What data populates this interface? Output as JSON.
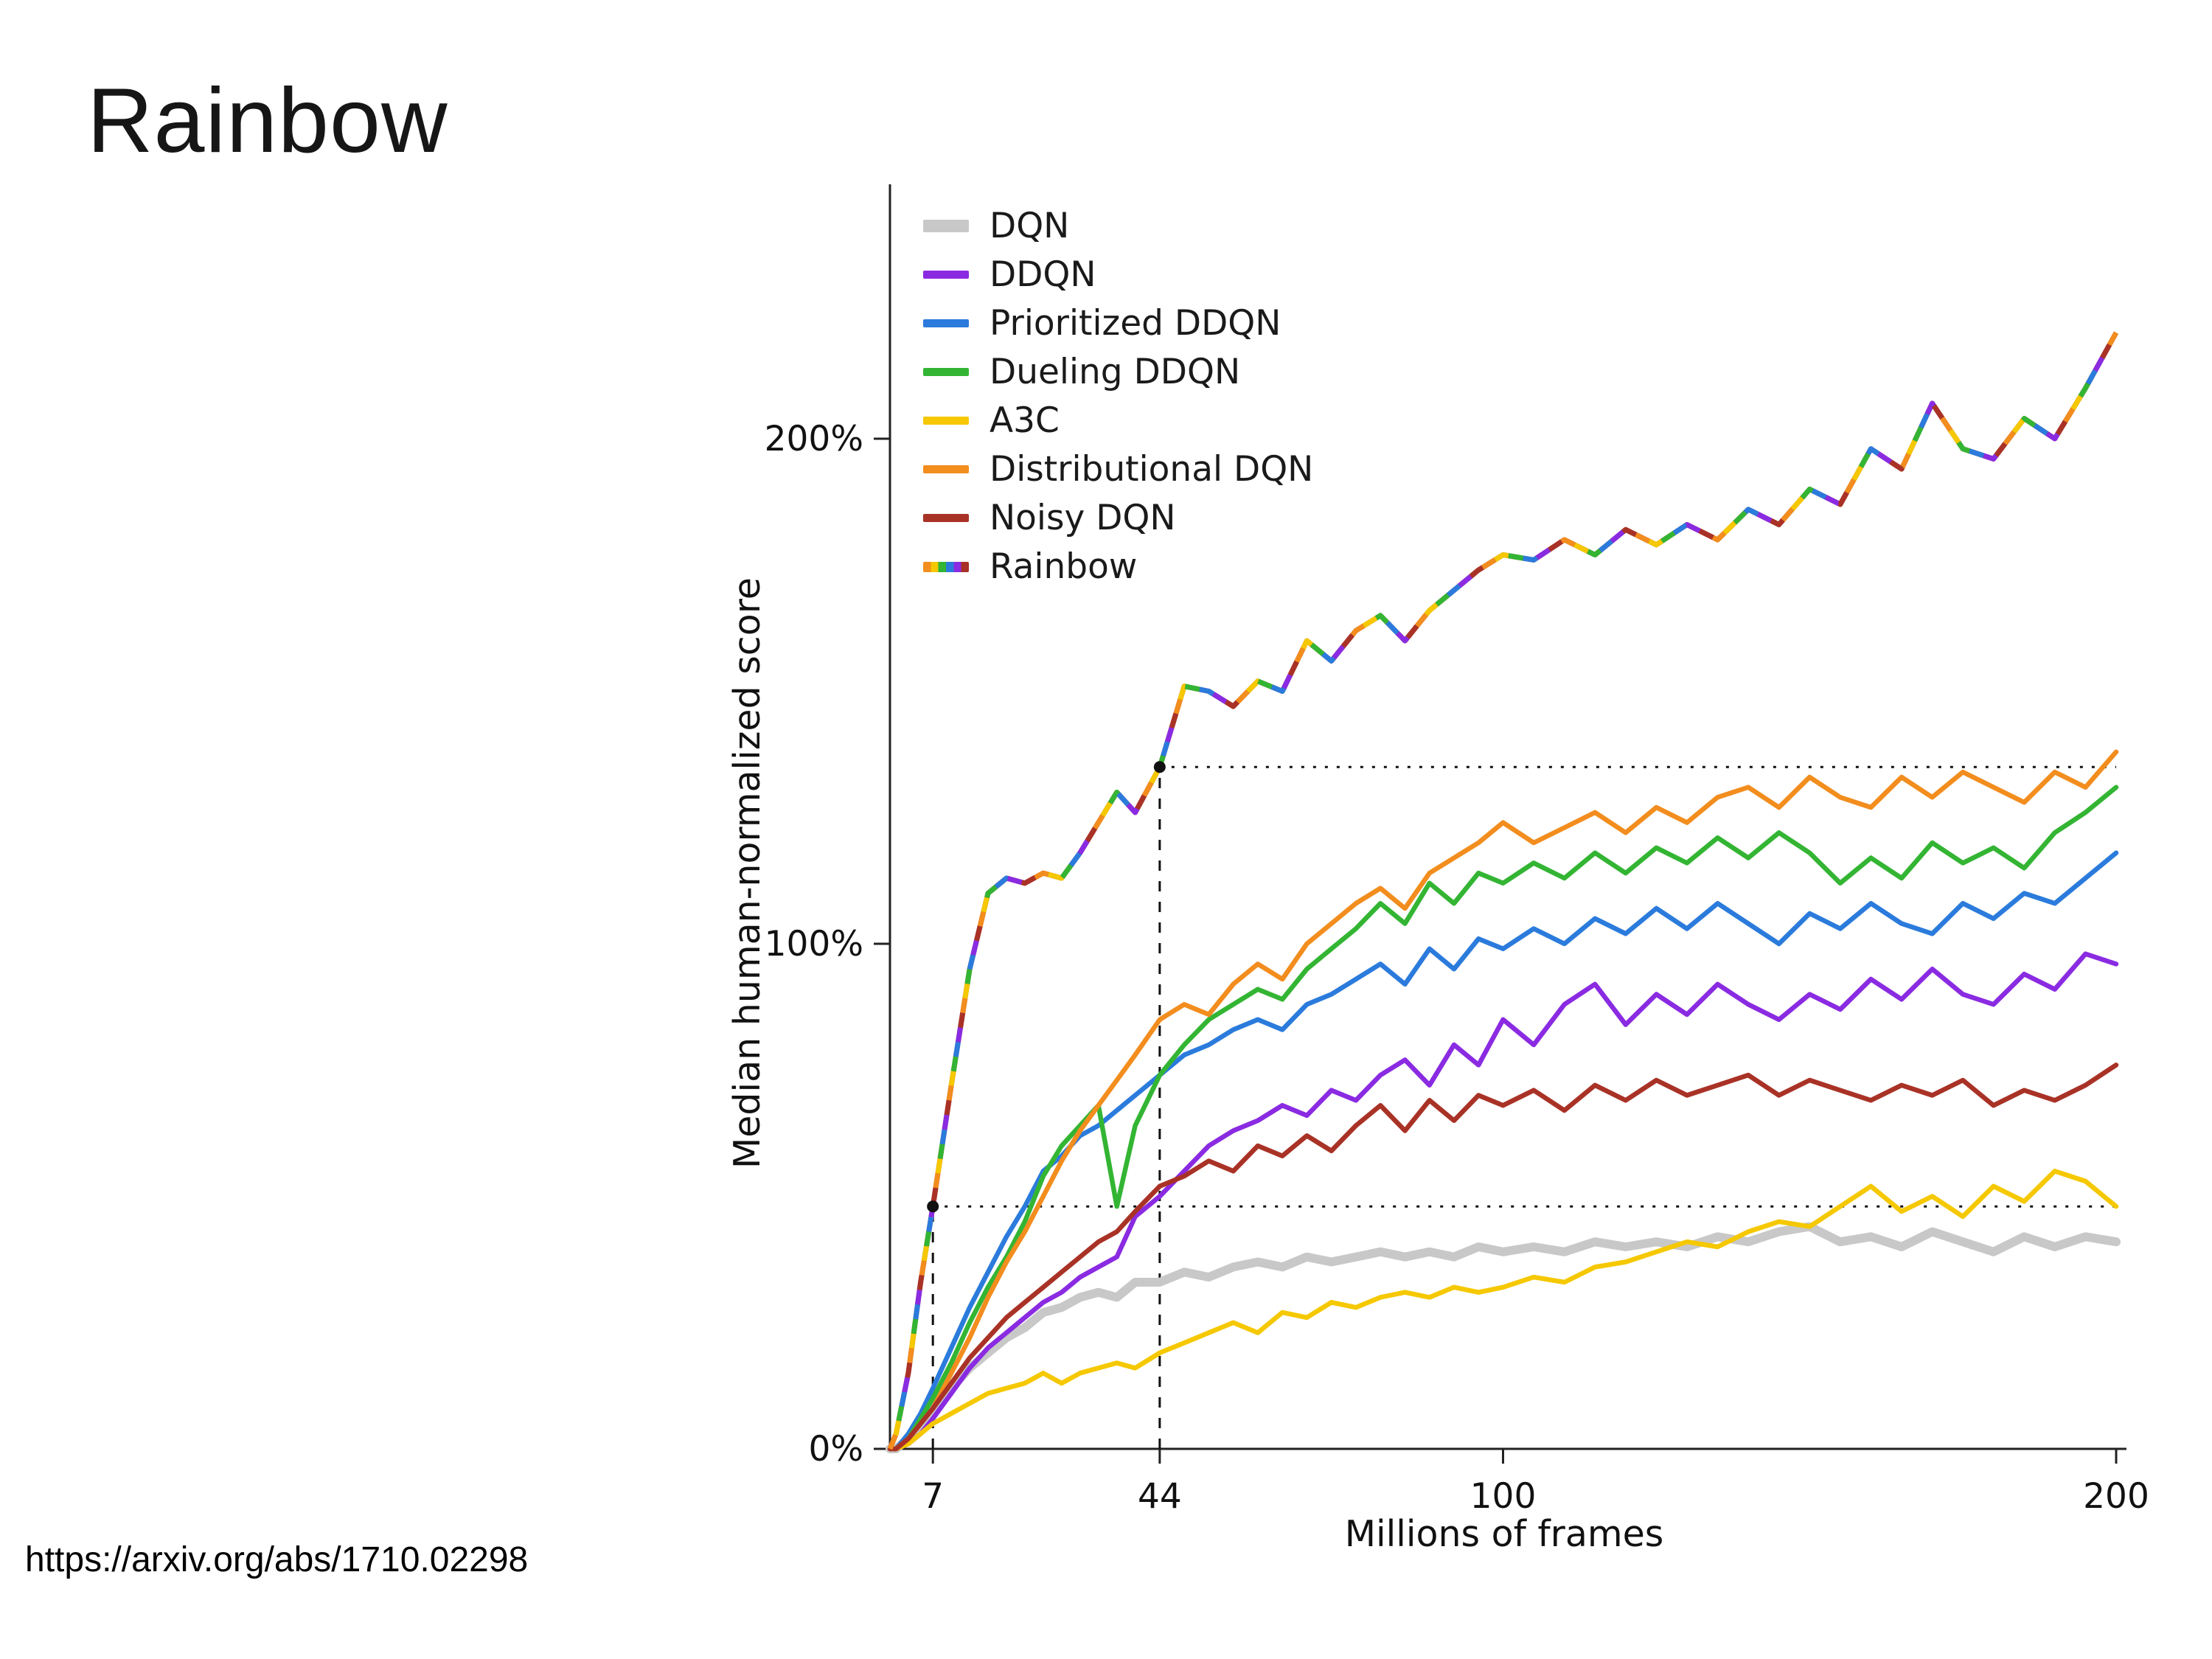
{
  "title": "Rainbow",
  "source_url": "https://arxiv.org/abs/1710.02298",
  "chart_data": {
    "type": "line",
    "title": "",
    "xlabel": "Millions of frames",
    "ylabel": "Median human-normalized score",
    "xlim": [
      0,
      200
    ],
    "ylim": [
      0,
      250
    ],
    "grid": false,
    "legend_position": "upper left",
    "xticks": [
      {
        "value": 7,
        "label": "7"
      },
      {
        "value": 44,
        "label": "44"
      },
      {
        "value": 100,
        "label": "100"
      },
      {
        "value": 200,
        "label": "200"
      }
    ],
    "yticks": [
      {
        "value": 0,
        "label": "0%"
      },
      {
        "value": 100,
        "label": "100%"
      },
      {
        "value": 200,
        "label": "200%"
      }
    ],
    "x": [
      0,
      1,
      3,
      5,
      7,
      10,
      13,
      16,
      19,
      22,
      25,
      28,
      31,
      34,
      37,
      40,
      44,
      48,
      52,
      56,
      60,
      64,
      68,
      72,
      76,
      80,
      84,
      88,
      92,
      96,
      100,
      105,
      110,
      115,
      120,
      125,
      130,
      135,
      140,
      145,
      150,
      155,
      160,
      165,
      170,
      175,
      180,
      185,
      190,
      195,
      200
    ],
    "series": [
      {
        "name": "DQN",
        "color": "#c8c8c8",
        "values": [
          0,
          0,
          2,
          5,
          8,
          12,
          16,
          19,
          22,
          24,
          27,
          28,
          30,
          31,
          30,
          33,
          33,
          35,
          34,
          36,
          37,
          36,
          38,
          37,
          38,
          39,
          38,
          39,
          38,
          40,
          39,
          40,
          39,
          41,
          40,
          41,
          40,
          42,
          41,
          43,
          44,
          41,
          42,
          40,
          43,
          41,
          39,
          42,
          40,
          42,
          41
        ]
      },
      {
        "name": "DDQN",
        "color": "#8a2be2",
        "values": [
          0,
          0,
          1,
          3,
          6,
          11,
          16,
          20,
          23,
          26,
          29,
          31,
          34,
          36,
          38,
          46,
          50,
          55,
          60,
          63,
          65,
          68,
          66,
          71,
          69,
          74,
          77,
          72,
          80,
          76,
          85,
          80,
          88,
          92,
          84,
          90,
          86,
          92,
          88,
          85,
          90,
          87,
          93,
          89,
          95,
          90,
          88,
          94,
          91,
          98,
          96
        ]
      },
      {
        "name": "Prioritized DDQN",
        "color": "#2b7bdc",
        "values": [
          0,
          0,
          3,
          7,
          12,
          20,
          28,
          35,
          42,
          48,
          55,
          58,
          62,
          64,
          67,
          70,
          74,
          78,
          80,
          83,
          85,
          83,
          88,
          90,
          93,
          96,
          92,
          99,
          95,
          101,
          99,
          103,
          100,
          105,
          102,
          107,
          103,
          108,
          104,
          100,
          106,
          103,
          108,
          104,
          102,
          108,
          105,
          110,
          108,
          113,
          118
        ]
      },
      {
        "name": "Dueling DDQN",
        "color": "#33b533",
        "values": [
          0,
          0,
          2,
          6,
          10,
          17,
          25,
          32,
          38,
          45,
          54,
          60,
          64,
          68,
          48,
          64,
          74,
          80,
          85,
          88,
          91,
          89,
          95,
          99,
          103,
          108,
          104,
          112,
          108,
          114,
          112,
          116,
          113,
          118,
          114,
          119,
          116,
          121,
          117,
          122,
          118,
          112,
          117,
          113,
          120,
          116,
          119,
          115,
          122,
          126,
          131
        ]
      },
      {
        "name": "A3C",
        "color": "#f5c800",
        "values": [
          0,
          0,
          1,
          3,
          5,
          7,
          9,
          11,
          12,
          13,
          15,
          13,
          15,
          16,
          17,
          16,
          19,
          21,
          23,
          25,
          23,
          27,
          26,
          29,
          28,
          30,
          31,
          30,
          32,
          31,
          32,
          34,
          33,
          36,
          37,
          39,
          41,
          40,
          43,
          45,
          44,
          48,
          52,
          47,
          50,
          46,
          52,
          49,
          55,
          53,
          48
        ]
      },
      {
        "name": "Distributional DQN",
        "color": "#f28d1e",
        "values": [
          0,
          0,
          2,
          5,
          8,
          15,
          22,
          30,
          37,
          43,
          50,
          57,
          63,
          68,
          73,
          78,
          85,
          88,
          86,
          92,
          96,
          93,
          100,
          104,
          108,
          111,
          107,
          114,
          117,
          120,
          124,
          120,
          123,
          126,
          122,
          127,
          124,
          129,
          131,
          127,
          133,
          129,
          127,
          133,
          129,
          134,
          131,
          128,
          134,
          131,
          138
        ]
      },
      {
        "name": "Noisy DQN",
        "color": "#a93226",
        "values": [
          0,
          0,
          2,
          5,
          8,
          13,
          18,
          22,
          26,
          29,
          32,
          35,
          38,
          41,
          43,
          47,
          52,
          54,
          57,
          55,
          60,
          58,
          62,
          59,
          64,
          68,
          63,
          69,
          65,
          70,
          68,
          71,
          67,
          72,
          69,
          73,
          70,
          72,
          74,
          70,
          73,
          71,
          69,
          72,
          70,
          73,
          68,
          71,
          69,
          72,
          76
        ]
      },
      {
        "name": "Rainbow",
        "color": "rainbow",
        "values": [
          0,
          3,
          15,
          33,
          48,
          72,
          95,
          110,
          113,
          112,
          114,
          113,
          118,
          124,
          130,
          126,
          135,
          151,
          150,
          147,
          152,
          150,
          160,
          156,
          162,
          165,
          160,
          166,
          170,
          174,
          177,
          176,
          180,
          177,
          182,
          179,
          183,
          180,
          186,
          183,
          190,
          187,
          198,
          194,
          207,
          198,
          196,
          204,
          200,
          210,
          221
        ]
      }
    ],
    "rainbow_colors": [
      "#f28d1e",
      "#f5c800",
      "#33b533",
      "#2b7bdc",
      "#8a2be2",
      "#a93226"
    ],
    "annotations": {
      "points": [
        {
          "x": 7,
          "y": 48
        },
        {
          "x": 44,
          "y": 135
        }
      ],
      "vlines": [
        {
          "x": 7,
          "to": 48
        },
        {
          "x": 44,
          "to": 135
        }
      ],
      "hlines": [
        {
          "y": 48,
          "from": 7,
          "to": 200
        },
        {
          "y": 135,
          "from": 44,
          "to": 200
        }
      ]
    }
  }
}
